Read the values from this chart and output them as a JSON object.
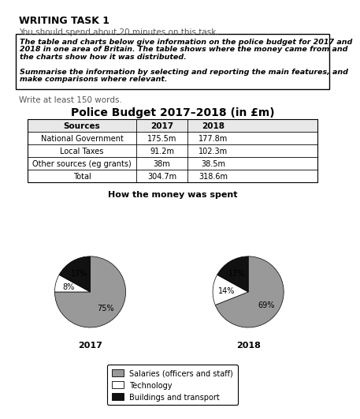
{
  "title": "Police Budget 2017–2018 (in £m)",
  "writing_task_title": "WRITING TASK 1",
  "subtitle1": "You should spend about 20 minutes on this task.",
  "box_line1": "The table and charts below give information on the police budget for 2017 and",
  "box_line2": "2018 in one area of Britain. The table shows where the money came from and",
  "box_line3": "the charts show how it was distributed.",
  "box_line4": "Summarise the information by selecting and reporting the main features, and",
  "box_line5": "make comparisons where relevant.",
  "write_text": "Write at least 150 words.",
  "table_headers": [
    "Sources",
    "2017",
    "2018"
  ],
  "table_rows": [
    [
      "National Government",
      "175.5m",
      "177.8m"
    ],
    [
      "Local Taxes",
      "91.2m",
      "102.3m"
    ],
    [
      "Other sources (eg grants)",
      "38m",
      "38.5m"
    ],
    [
      "Total",
      "304.7m",
      "318.6m"
    ]
  ],
  "pie_title": "How the money was spent",
  "pie_2017": [
    75,
    8,
    17
  ],
  "pie_2018": [
    69,
    14,
    17
  ],
  "pie_colors": [
    "#999999",
    "#ffffff",
    "#111111"
  ],
  "pie_year_labels": [
    "2017",
    "2018"
  ],
  "legend_labels": [
    "Salaries (officers and staff)",
    "Technology",
    "Buildings and transport"
  ],
  "legend_colors": [
    "#999999",
    "#ffffff",
    "#111111"
  ],
  "bg_color": "#ffffff"
}
